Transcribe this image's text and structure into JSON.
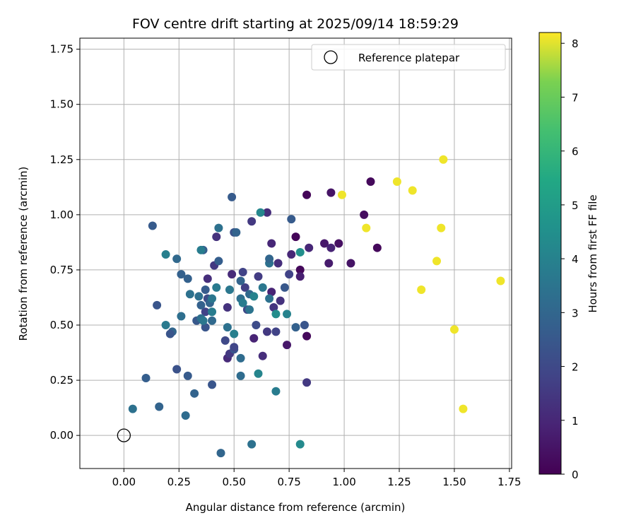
{
  "chart_data": {
    "type": "scatter",
    "title": "FOV centre drift starting at 2025/09/14 18:59:29",
    "xlabel": "Angular distance from reference (arcmin)",
    "ylabel": "Rotation from reference (arcmin)",
    "xlim": [
      -0.2,
      1.76
    ],
    "ylim": [
      -0.15,
      1.8
    ],
    "xticks": [
      0.0,
      0.25,
      0.5,
      0.75,
      1.0,
      1.25,
      1.5,
      1.75
    ],
    "xtick_labels": [
      "0.00",
      "0.25",
      "0.50",
      "0.75",
      "1.00",
      "1.25",
      "1.50",
      "1.75"
    ],
    "yticks": [
      0.0,
      0.25,
      0.5,
      0.75,
      1.0,
      1.25,
      1.5,
      1.75
    ],
    "ytick_labels": [
      "0.00",
      "0.25",
      "0.50",
      "0.75",
      "1.00",
      "1.25",
      "1.50",
      "1.75"
    ],
    "grid": true,
    "colormap": "viridis",
    "colorbar": {
      "label": "Hours from first FF file",
      "range": [
        0,
        8.2
      ],
      "ticks": [
        0,
        1,
        2,
        3,
        4,
        5,
        6,
        7,
        8
      ],
      "tick_labels": [
        "0",
        "1",
        "2",
        "3",
        "4",
        "5",
        "6",
        "7",
        "8"
      ]
    },
    "legend": {
      "position": "top-right",
      "entries": [
        {
          "label": "Reference platepar",
          "marker": "open-circle"
        }
      ]
    },
    "reference_point": {
      "x": 0.0,
      "y": 0.0
    },
    "points": [
      {
        "x": 0.83,
        "y": 1.09,
        "c": 0.1
      },
      {
        "x": 0.94,
        "y": 1.1,
        "c": 0.5
      },
      {
        "x": 1.12,
        "y": 1.15,
        "c": 0.2
      },
      {
        "x": 1.09,
        "y": 1.0,
        "c": 0.3
      },
      {
        "x": 0.78,
        "y": 0.9,
        "c": 0.1
      },
      {
        "x": 0.91,
        "y": 0.87,
        "c": 0.6
      },
      {
        "x": 0.94,
        "y": 0.85,
        "c": 0.9
      },
      {
        "x": 0.975,
        "y": 0.87,
        "c": 0.4
      },
      {
        "x": 1.15,
        "y": 0.85,
        "c": 0.2
      },
      {
        "x": 0.84,
        "y": 0.85,
        "c": 1.0
      },
      {
        "x": 0.8,
        "y": 0.75,
        "c": 0.2
      },
      {
        "x": 0.8,
        "y": 0.72,
        "c": 0.8
      },
      {
        "x": 0.93,
        "y": 0.78,
        "c": 0.7
      },
      {
        "x": 1.03,
        "y": 0.78,
        "c": 0.5
      },
      {
        "x": 0.74,
        "y": 0.41,
        "c": 0.6
      },
      {
        "x": 0.83,
        "y": 0.45,
        "c": 0.2
      },
      {
        "x": 0.67,
        "y": 0.87,
        "c": 1.0
      },
      {
        "x": 0.7,
        "y": 0.78,
        "c": 1.2
      },
      {
        "x": 0.76,
        "y": 0.82,
        "c": 1.0
      },
      {
        "x": 0.75,
        "y": 0.73,
        "c": 1.8
      },
      {
        "x": 0.67,
        "y": 0.65,
        "c": 0.9
      },
      {
        "x": 0.71,
        "y": 0.61,
        "c": 1.3
      },
      {
        "x": 0.68,
        "y": 0.58,
        "c": 1.4
      },
      {
        "x": 0.65,
        "y": 0.47,
        "c": 1.5
      },
      {
        "x": 0.59,
        "y": 0.44,
        "c": 0.9
      },
      {
        "x": 0.63,
        "y": 0.36,
        "c": 1.2
      },
      {
        "x": 0.47,
        "y": 0.35,
        "c": 1.1
      },
      {
        "x": 0.48,
        "y": 0.37,
        "c": 1.5
      },
      {
        "x": 0.47,
        "y": 0.58,
        "c": 1.3
      },
      {
        "x": 0.49,
        "y": 0.73,
        "c": 1.1
      },
      {
        "x": 0.58,
        "y": 0.97,
        "c": 1.5
      },
      {
        "x": 0.65,
        "y": 1.01,
        "c": 1.2
      },
      {
        "x": 0.42,
        "y": 0.9,
        "c": 1.3
      },
      {
        "x": 0.41,
        "y": 0.77,
        "c": 1.5
      },
      {
        "x": 0.38,
        "y": 0.71,
        "c": 1.2
      },
      {
        "x": 0.37,
        "y": 0.56,
        "c": 1.8
      },
      {
        "x": 0.54,
        "y": 0.74,
        "c": 1.8
      },
      {
        "x": 0.55,
        "y": 0.67,
        "c": 1.7
      },
      {
        "x": 0.61,
        "y": 0.72,
        "c": 1.6
      },
      {
        "x": 0.56,
        "y": 0.57,
        "c": 2.0
      },
      {
        "x": 0.6,
        "y": 0.5,
        "c": 2.1
      },
      {
        "x": 0.69,
        "y": 0.47,
        "c": 1.8
      },
      {
        "x": 0.46,
        "y": 0.43,
        "c": 2.0
      },
      {
        "x": 0.5,
        "y": 0.39,
        "c": 2.4
      },
      {
        "x": 0.5,
        "y": 0.4,
        "c": 1.9
      },
      {
        "x": 0.83,
        "y": 0.24,
        "c": 1.5
      },
      {
        "x": 0.82,
        "y": 0.5,
        "c": 2.4
      },
      {
        "x": 0.78,
        "y": 0.49,
        "c": 2.8
      },
      {
        "x": 0.73,
        "y": 0.67,
        "c": 2.5
      },
      {
        "x": 0.76,
        "y": 0.98,
        "c": 2.6
      },
      {
        "x": 0.49,
        "y": 1.08,
        "c": 2.6
      },
      {
        "x": 0.5,
        "y": 0.92,
        "c": 2.3
      },
      {
        "x": 0.43,
        "y": 0.79,
        "c": 2.7
      },
      {
        "x": 0.51,
        "y": 0.92,
        "c": 2.9
      },
      {
        "x": 0.13,
        "y": 0.95,
        "c": 2.6
      },
      {
        "x": 0.15,
        "y": 0.59,
        "c": 2.4
      },
      {
        "x": 0.24,
        "y": 0.8,
        "c": 3.1
      },
      {
        "x": 0.26,
        "y": 0.73,
        "c": 2.8
      },
      {
        "x": 0.29,
        "y": 0.71,
        "c": 2.8
      },
      {
        "x": 0.36,
        "y": 0.84,
        "c": 2.7
      },
      {
        "x": 0.37,
        "y": 0.66,
        "c": 2.6
      },
      {
        "x": 0.38,
        "y": 0.62,
        "c": 2.1
      },
      {
        "x": 0.39,
        "y": 0.6,
        "c": 2.9
      },
      {
        "x": 0.33,
        "y": 0.52,
        "c": 2.5
      },
      {
        "x": 0.37,
        "y": 0.49,
        "c": 2.4
      },
      {
        "x": 0.4,
        "y": 0.52,
        "c": 3.1
      },
      {
        "x": 0.34,
        "y": 0.63,
        "c": 3.3
      },
      {
        "x": 0.35,
        "y": 0.59,
        "c": 2.8
      },
      {
        "x": 0.22,
        "y": 0.47,
        "c": 3.0
      },
      {
        "x": 0.21,
        "y": 0.46,
        "c": 2.4
      },
      {
        "x": 0.24,
        "y": 0.3,
        "c": 2.3
      },
      {
        "x": 0.29,
        "y": 0.27,
        "c": 2.6
      },
      {
        "x": 0.32,
        "y": 0.19,
        "c": 2.9
      },
      {
        "x": 0.4,
        "y": 0.23,
        "c": 2.4
      },
      {
        "x": 0.1,
        "y": 0.26,
        "c": 2.7
      },
      {
        "x": 0.16,
        "y": 0.13,
        "c": 2.9
      },
      {
        "x": 0.04,
        "y": 0.12,
        "c": 3.4
      },
      {
        "x": 0.28,
        "y": 0.09,
        "c": 3.2
      },
      {
        "x": 0.44,
        "y": -0.08,
        "c": 3.0
      },
      {
        "x": 0.58,
        "y": -0.04,
        "c": 3.4
      },
      {
        "x": 0.8,
        "y": -0.04,
        "c": 4.3
      },
      {
        "x": 0.53,
        "y": 0.27,
        "c": 3.2
      },
      {
        "x": 0.53,
        "y": 0.35,
        "c": 3.2
      },
      {
        "x": 0.61,
        "y": 0.28,
        "c": 4.1
      },
      {
        "x": 0.69,
        "y": 0.2,
        "c": 3.8
      },
      {
        "x": 0.62,
        "y": 1.01,
        "c": 4.2
      },
      {
        "x": 0.8,
        "y": 0.83,
        "c": 4.5
      },
      {
        "x": 0.66,
        "y": 0.78,
        "c": 3.4
      },
      {
        "x": 0.66,
        "y": 0.8,
        "c": 3.0
      },
      {
        "x": 0.63,
        "y": 0.67,
        "c": 3.6
      },
      {
        "x": 0.53,
        "y": 0.7,
        "c": 2.9
      },
      {
        "x": 0.48,
        "y": 0.66,
        "c": 3.6
      },
      {
        "x": 0.57,
        "y": 0.64,
        "c": 3.1
      },
      {
        "x": 0.53,
        "y": 0.62,
        "c": 3.3
      },
      {
        "x": 0.54,
        "y": 0.6,
        "c": 3.8
      },
      {
        "x": 0.57,
        "y": 0.57,
        "c": 3.5
      },
      {
        "x": 0.59,
        "y": 0.63,
        "c": 4.0
      },
      {
        "x": 0.66,
        "y": 0.62,
        "c": 3.4
      },
      {
        "x": 0.74,
        "y": 0.55,
        "c": 4.0
      },
      {
        "x": 0.69,
        "y": 0.55,
        "c": 4.4
      },
      {
        "x": 0.5,
        "y": 0.46,
        "c": 3.9
      },
      {
        "x": 0.47,
        "y": 0.49,
        "c": 3.4
      },
      {
        "x": 0.4,
        "y": 0.56,
        "c": 3.8
      },
      {
        "x": 0.42,
        "y": 0.67,
        "c": 3.7
      },
      {
        "x": 0.4,
        "y": 0.62,
        "c": 3.6
      },
      {
        "x": 0.43,
        "y": 0.94,
        "c": 3.4
      },
      {
        "x": 0.35,
        "y": 0.84,
        "c": 3.8
      },
      {
        "x": 0.19,
        "y": 0.82,
        "c": 3.9
      },
      {
        "x": 0.19,
        "y": 0.5,
        "c": 3.7
      },
      {
        "x": 0.26,
        "y": 0.54,
        "c": 3.3
      },
      {
        "x": 0.35,
        "y": 0.53,
        "c": 3.3
      },
      {
        "x": 0.36,
        "y": 0.52,
        "c": 3.6
      },
      {
        "x": 0.3,
        "y": 0.64,
        "c": 3.4
      }
    ],
    "yellow_points": [
      {
        "x": 0.99,
        "y": 1.09,
        "c": 8.1
      },
      {
        "x": 1.24,
        "y": 1.15,
        "c": 8.1
      },
      {
        "x": 1.31,
        "y": 1.11,
        "c": 8.1
      },
      {
        "x": 1.45,
        "y": 1.25,
        "c": 8.1
      },
      {
        "x": 1.1,
        "y": 0.94,
        "c": 8.1
      },
      {
        "x": 1.44,
        "y": 0.94,
        "c": 8.1
      },
      {
        "x": 1.42,
        "y": 0.79,
        "c": 8.1
      },
      {
        "x": 1.35,
        "y": 0.66,
        "c": 8.1
      },
      {
        "x": 1.71,
        "y": 0.7,
        "c": 8.1
      },
      {
        "x": 1.5,
        "y": 0.48,
        "c": 8.1
      },
      {
        "x": 1.54,
        "y": 0.12,
        "c": 8.1
      }
    ]
  }
}
